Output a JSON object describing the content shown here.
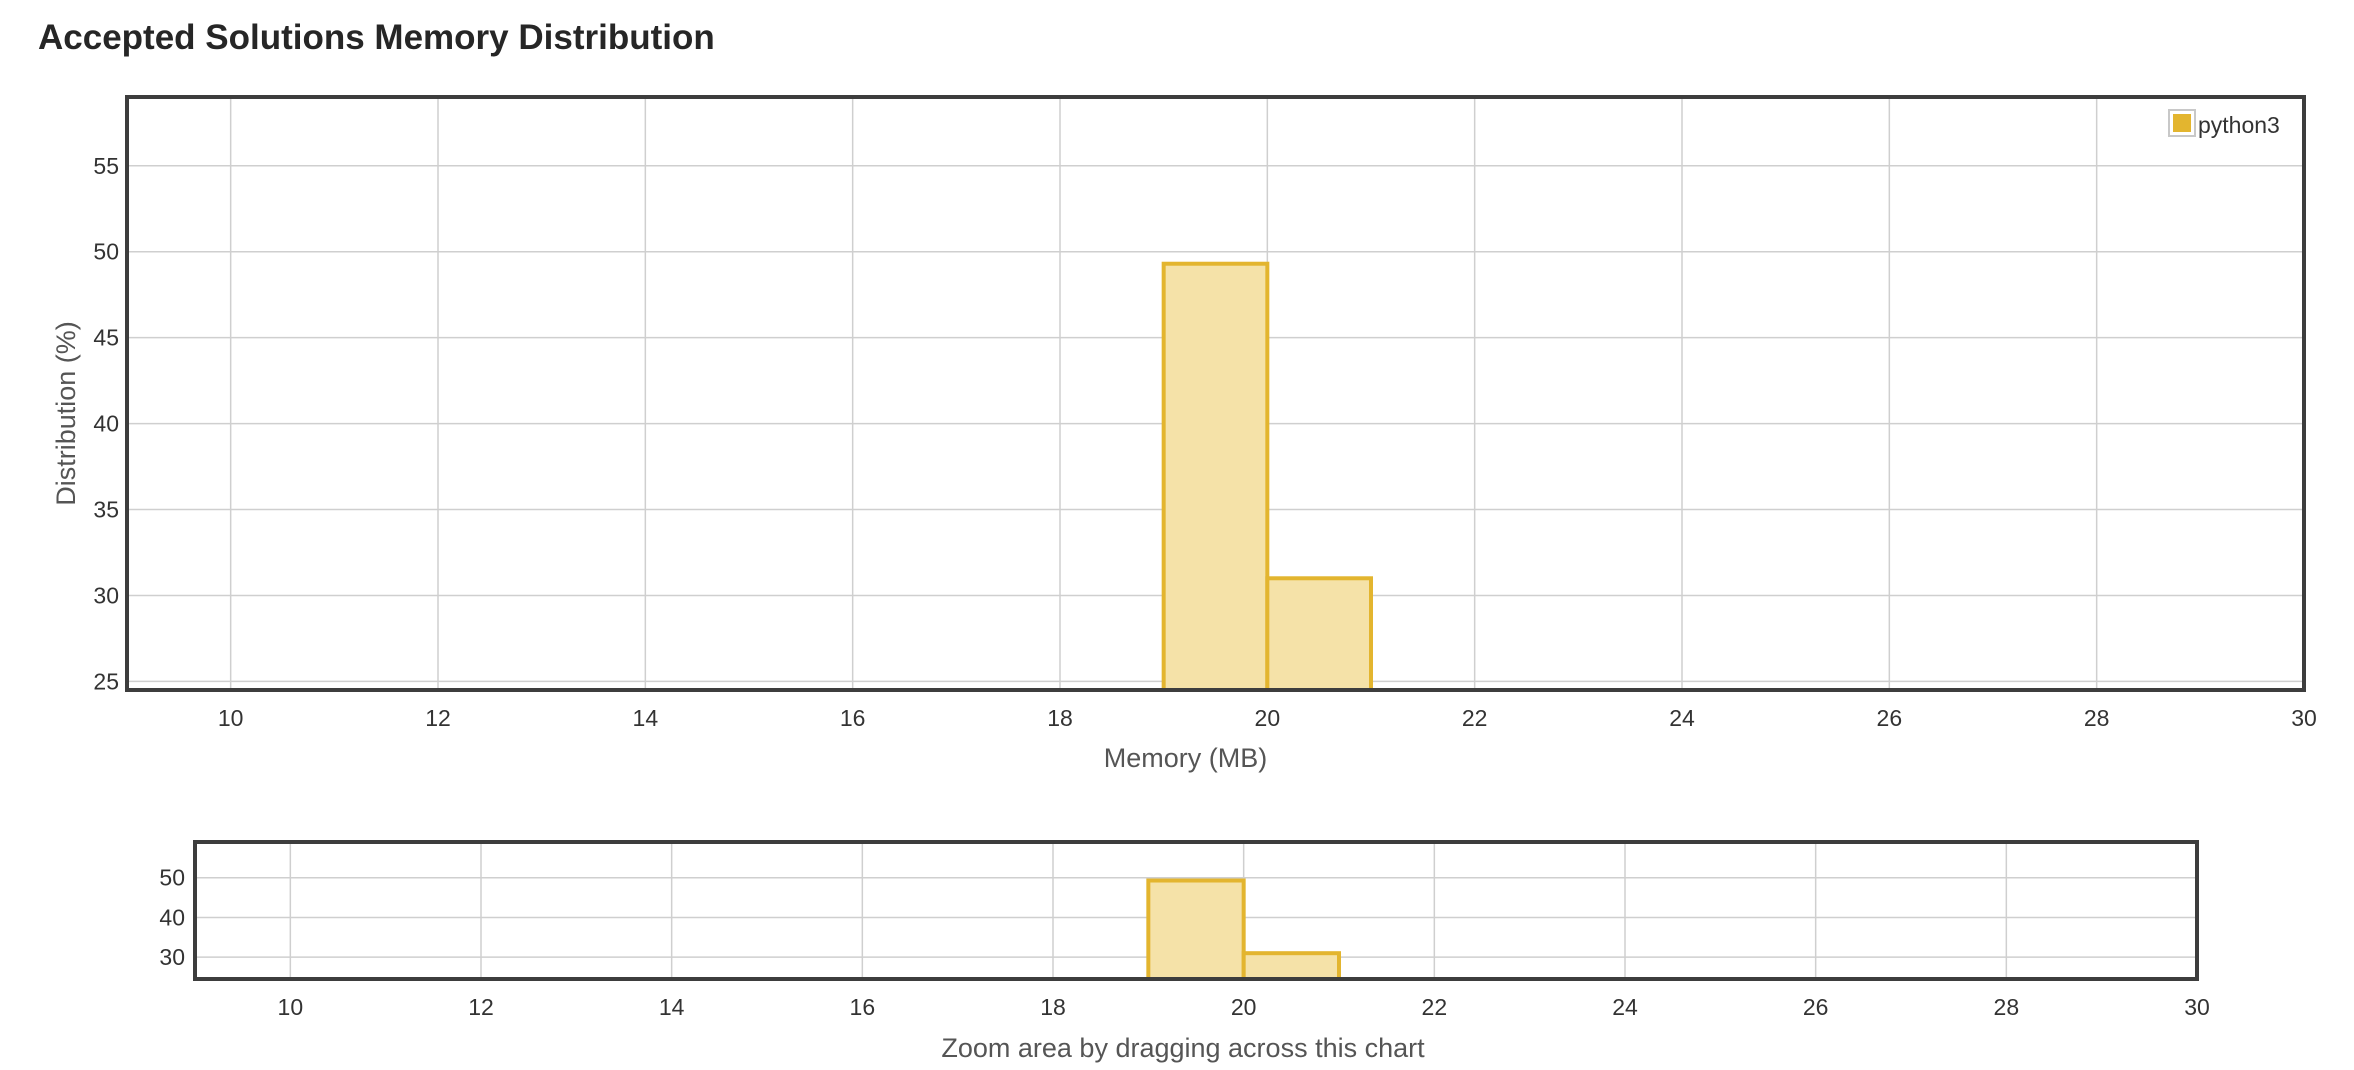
{
  "page": {
    "title": "Accepted Solutions Memory Distribution"
  },
  "chart_data": [
    {
      "type": "bar",
      "role": "main",
      "xlabel": "Memory (MB)",
      "ylabel": "Distribution (%)",
      "xlim": [
        9,
        30
      ],
      "ylim": [
        24.5,
        59
      ],
      "xticks": [
        10,
        12,
        14,
        16,
        18,
        20,
        22,
        24,
        26,
        28,
        30
      ],
      "yticks": [
        25,
        30,
        35,
        40,
        45,
        50,
        55
      ],
      "grid": true,
      "legend_placement": "top-right",
      "series": [
        {
          "name": "python3",
          "color": "#e3b52f",
          "fill": "#f5e2a8",
          "bins": [
            {
              "x0": 19,
              "x1": 20,
              "value": 49.3
            },
            {
              "x0": 20,
              "x1": 21,
              "value": 31
            }
          ]
        }
      ]
    },
    {
      "type": "bar",
      "role": "navigator",
      "xlabel": "Zoom area by dragging across this chart",
      "xlim": [
        9,
        30
      ],
      "ylim": [
        24.5,
        59
      ],
      "xticks": [
        10,
        12,
        14,
        16,
        18,
        20,
        22,
        24,
        26,
        28,
        30
      ],
      "yticks": [
        30,
        40,
        50
      ],
      "grid": true,
      "series": [
        {
          "name": "python3",
          "color": "#e3b52f",
          "fill": "#f5e2a8",
          "bins": [
            {
              "x0": 19,
              "x1": 20,
              "value": 49.3
            },
            {
              "x0": 20,
              "x1": 21,
              "value": 31
            }
          ]
        }
      ]
    }
  ]
}
